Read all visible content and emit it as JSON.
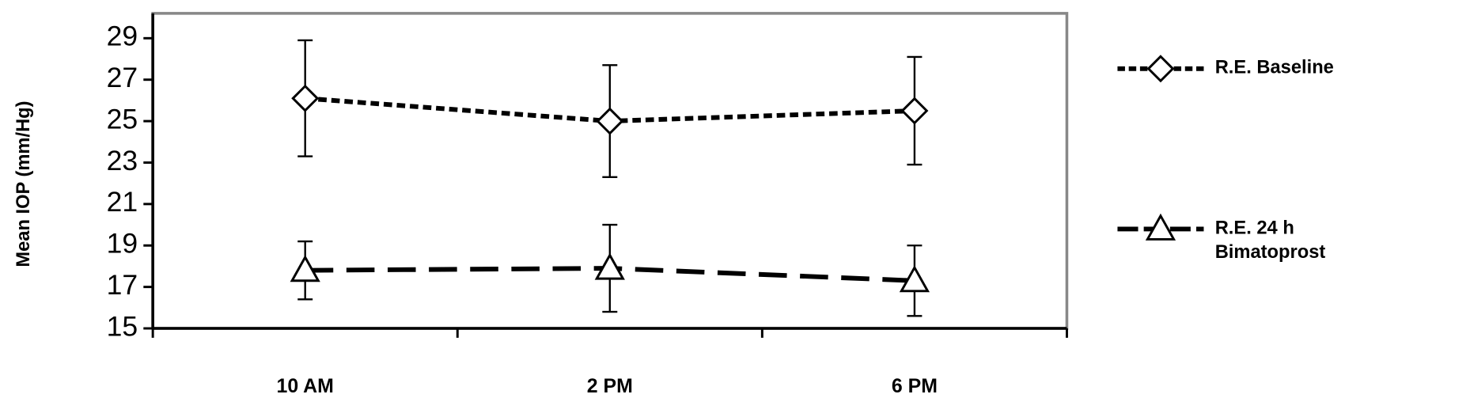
{
  "chart_data": {
    "type": "line",
    "y_label": "Mean IOP (mm/Hg)",
    "categories": [
      "10 AM",
      "2 PM",
      "6 PM"
    ],
    "series": [
      {
        "name": "R.E. Baseline",
        "color": "#000000",
        "marker": "diamond",
        "line_style": "dotted",
        "values": [
          26.1,
          25.0,
          25.5
        ],
        "errors": [
          2.8,
          2.7,
          2.6
        ]
      },
      {
        "name": "R.E. 24 h Bimatoprost",
        "color": "#000000",
        "marker": "triangle",
        "line_style": "dashed",
        "values": [
          17.8,
          17.9,
          17.3
        ],
        "errors": [
          1.4,
          2.1,
          1.7
        ]
      }
    ],
    "ylim": [
      15,
      30.2
    ],
    "yticks": [
      15,
      17,
      19,
      21,
      23,
      25,
      27,
      29
    ],
    "legend": "right"
  }
}
